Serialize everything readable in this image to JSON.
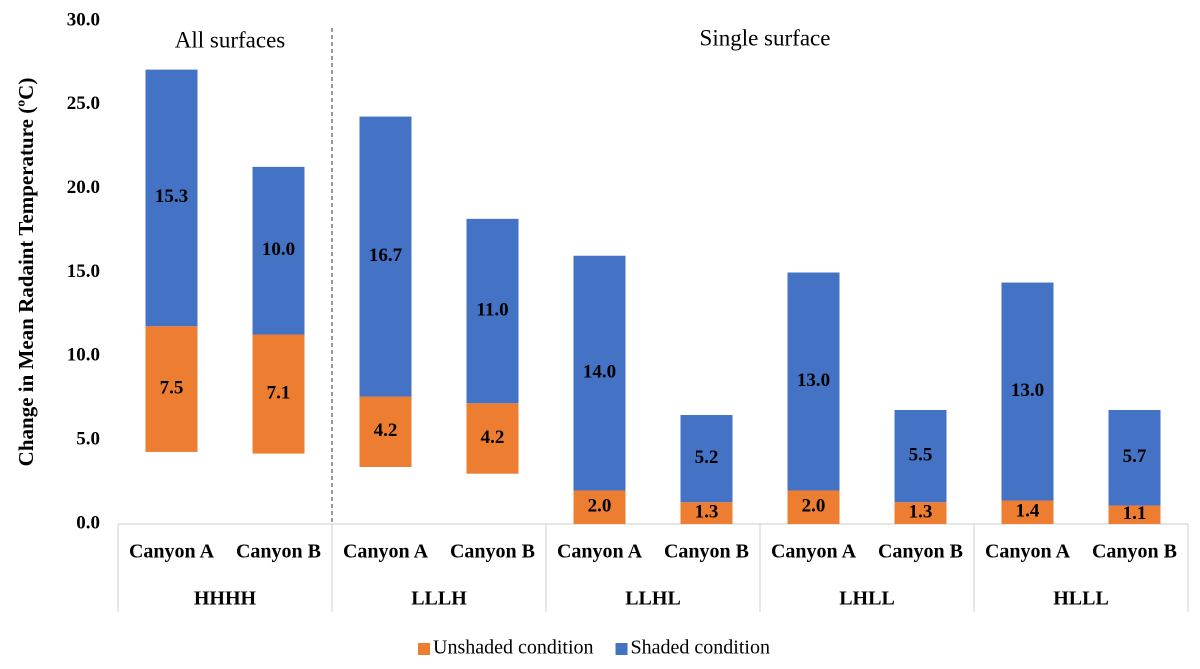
{
  "chart_data": {
    "type": "floating_stacked_bar",
    "y_label": "Change in Mean Radaint Temperature (ºC)",
    "annotations": [
      "All surfaces",
      "Single surface"
    ],
    "categories": [
      "Canyon A",
      "Canyon B",
      "Canyon A",
      "Canyon B",
      "Canyon A",
      "Canyon B",
      "Canyon A",
      "Canyon B",
      "Canyon A",
      "Canyon B"
    ],
    "groups": [
      "HHHH",
      "LLLH",
      "LLHL",
      "LHLL",
      "HLLL"
    ],
    "series": [
      {
        "color": "none",
        "values": [
          4.3,
          4.2,
          3.4,
          3.0,
          0,
          0,
          0,
          0,
          0,
          0
        ]
      },
      {
        "name": "Unshaded condition",
        "color": "#ed7d31",
        "values": [
          7.5,
          7.1,
          4.2,
          4.2,
          2.0,
          1.3,
          2.0,
          1.3,
          1.4,
          1.1
        ],
        "value_labels": [
          "7.5",
          "7.1",
          "4.2",
          "4.2",
          "2.0",
          "1.3",
          "2.0",
          "1.3",
          "1.4",
          "1.1"
        ]
      },
      {
        "name": "Shaded condition",
        "color": "#4472c4",
        "values": [
          15.3,
          10.0,
          16.7,
          11.0,
          14.0,
          5.2,
          13.0,
          5.5,
          13.0,
          5.7
        ],
        "value_labels": [
          "15.3",
          "10.0",
          "16.7",
          "11.0",
          "14.0",
          "5.2",
          "13.0",
          "5.5",
          "13.0",
          "5.7"
        ]
      }
    ],
    "ylim": [
      0,
      30
    ],
    "yticks": [
      {
        "value": 0,
        "label": "0.0"
      },
      {
        "value": 5,
        "label": "5.0"
      },
      {
        "value": 10,
        "label": "10.0"
      },
      {
        "value": 15,
        "label": "15.0"
      },
      {
        "value": 20,
        "label": "20.0"
      },
      {
        "value": 25,
        "label": "25.0"
      },
      {
        "value": 30,
        "label": "30.0"
      }
    ],
    "grid": false
  }
}
